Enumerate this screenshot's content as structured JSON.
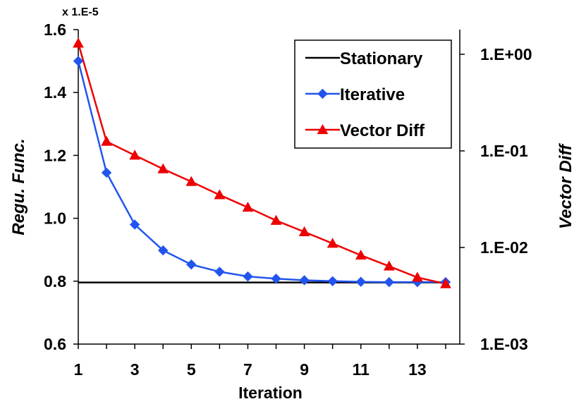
{
  "chart_data": {
    "type": "line",
    "title": "",
    "xlabel": "Iteration",
    "ylabel": "Regu. Func.",
    "y2label": "Vector Diff",
    "y_multiplier_label": "x 1.E-5",
    "x": [
      1,
      2,
      3,
      4,
      5,
      6,
      7,
      8,
      9,
      10,
      11,
      12,
      13,
      14
    ],
    "x_tick_labels": [
      "1",
      "3",
      "5",
      "7",
      "9",
      "11",
      "13"
    ],
    "x_tick_values": [
      1,
      3,
      5,
      7,
      9,
      11,
      13
    ],
    "xlim": [
      1,
      14.5
    ],
    "ylim": [
      0.6,
      1.6
    ],
    "y_ticks": [
      0.6,
      0.8,
      1.0,
      1.2,
      1.4,
      1.6
    ],
    "y_tick_labels": [
      "0.6",
      "0.8",
      "1.0",
      "1.2",
      "1.4",
      "1.6"
    ],
    "y2lim": [
      0.001,
      1.8
    ],
    "y2_scale": "log",
    "y2_ticks": [
      0.001,
      0.01,
      0.1,
      1
    ],
    "y2_tick_labels": [
      "1.E-03",
      "1.E-02",
      "1.E-01",
      "1.E+00"
    ],
    "grid": false,
    "legend_position": "top-right",
    "series": [
      {
        "name": "Stationary",
        "axis": "left",
        "color": "#000000",
        "marker": "none",
        "values": [
          0.796,
          0.796,
          0.796,
          0.796,
          0.796,
          0.796,
          0.796,
          0.796,
          0.796,
          0.796,
          0.796,
          0.796,
          0.796,
          0.796
        ]
      },
      {
        "name": "Iterative",
        "axis": "left",
        "color": "#2255ee",
        "marker": "diamond",
        "values": [
          1.5,
          1.145,
          0.98,
          0.898,
          0.853,
          0.83,
          0.815,
          0.808,
          0.803,
          0.8,
          0.798,
          0.797,
          0.797,
          0.797
        ]
      },
      {
        "name": "Vector Diff",
        "axis": "right",
        "color": "#ee0000",
        "marker": "triangle",
        "values": [
          1.3,
          0.125,
          0.09,
          0.065,
          0.048,
          0.035,
          0.026,
          0.019,
          0.0145,
          0.011,
          0.0083,
          0.0064,
          0.0049,
          0.0042
        ]
      }
    ]
  }
}
